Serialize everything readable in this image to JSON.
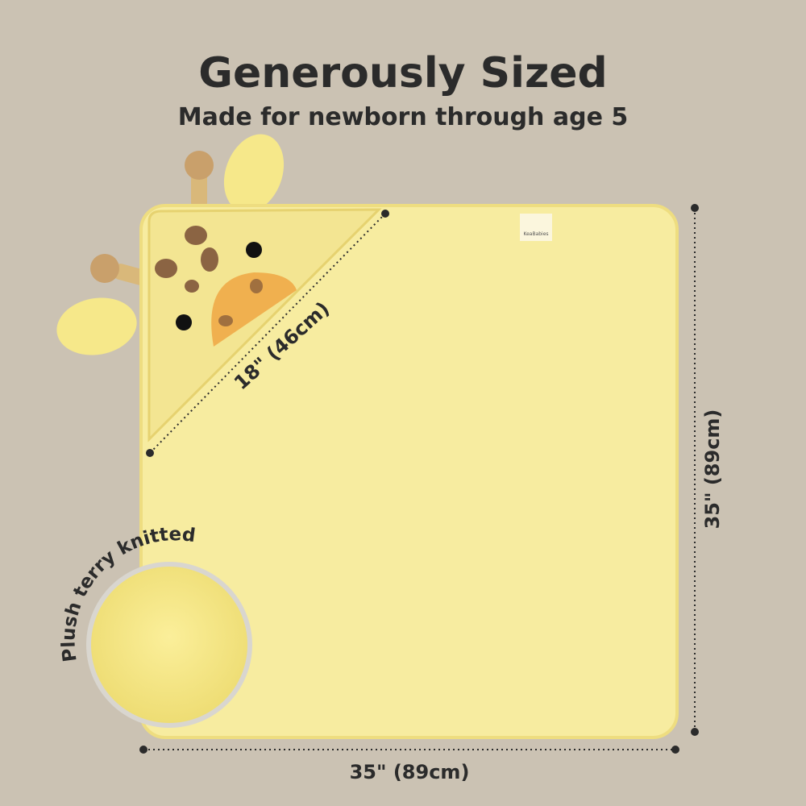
{
  "header": {
    "title": "Generously Sized",
    "subtitle": "Made for newborn through age 5"
  },
  "dimensions": {
    "hood": "18\" (46cm)",
    "height": "35\" (89cm)",
    "width": "35\" (89cm)"
  },
  "callout": {
    "label": "Plush terry knitted"
  },
  "tag": {
    "brand": "KeaBabies"
  }
}
